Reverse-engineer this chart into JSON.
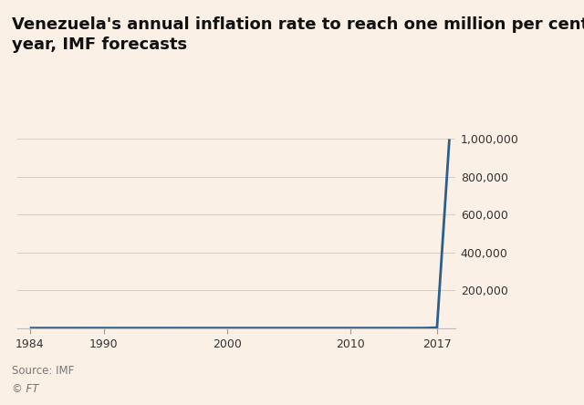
{
  "title": "Venezuela's annual inflation rate to reach one million per cent this\nyear, IMF forecasts",
  "background_color": "#faf0e6",
  "plot_bg_color": "#faf0e6",
  "line_color": "#2c5f8a",
  "line_width": 2.0,
  "source_line1": "Source: IMF",
  "source_line2": "© FT",
  "x_ticks": [
    1984,
    1990,
    2000,
    2010,
    2017
  ],
  "x_min": 1983,
  "x_max": 2018.5,
  "y_min": 0,
  "y_max": 1050000,
  "y_ticks": [
    0,
    200000,
    400000,
    600000,
    800000,
    1000000
  ],
  "y_tick_labels": [
    "",
    "200,000",
    "400,000",
    "600,000",
    "800,000",
    "1,000,000"
  ],
  "years": [
    1984,
    1985,
    1986,
    1987,
    1988,
    1989,
    1990,
    1991,
    1992,
    1993,
    1994,
    1995,
    1996,
    1997,
    1998,
    1999,
    2000,
    2001,
    2002,
    2003,
    2004,
    2005,
    2006,
    2007,
    2008,
    2009,
    2010,
    2011,
    2012,
    2013,
    2014,
    2015,
    2016,
    2017,
    2018
  ],
  "values": [
    7,
    11,
    11,
    28,
    30,
    84,
    40,
    34,
    31,
    46,
    71,
    60,
    100,
    37,
    36,
    23,
    13,
    12,
    22,
    31,
    22,
    16,
    13,
    18,
    30,
    27,
    29,
    27,
    21,
    56,
    69,
    121,
    274,
    2400,
    1000000
  ],
  "title_fontsize": 13,
  "tick_fontsize": 9,
  "source_fontsize": 8.5,
  "grid_color": "#d8cfc8",
  "spine_color": "#bbbbbb",
  "tick_color": "#999999",
  "text_color": "#333333",
  "source_color": "#777777"
}
